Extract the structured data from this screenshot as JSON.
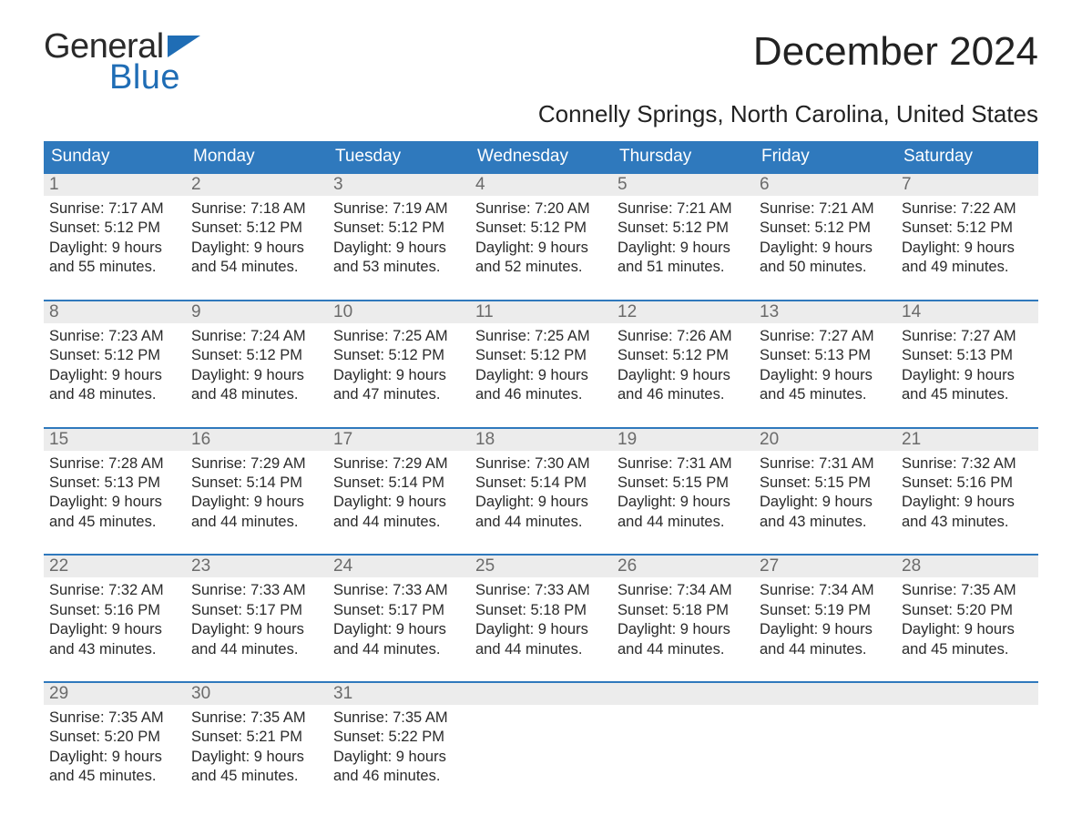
{
  "brand": {
    "word1": "General",
    "word2": "Blue"
  },
  "title": "December 2024",
  "subtitle": "Connelly Springs, North Carolina, United States",
  "colors": {
    "header_bg": "#2f79bd",
    "header_text": "#ffffff",
    "daynum_bg": "#ececec",
    "daynum_text": "#6b6b6b",
    "week_border": "#2f79bd",
    "body_text": "#2a2a2a",
    "logo_blue": "#1f6db5",
    "background": "#ffffff"
  },
  "typography": {
    "title_fontsize": 44,
    "subtitle_fontsize": 26,
    "header_fontsize": 19,
    "daynum_fontsize": 19,
    "body_fontsize": 16.5,
    "logo_fontsize": 38
  },
  "dayNames": [
    "Sunday",
    "Monday",
    "Tuesday",
    "Wednesday",
    "Thursday",
    "Friday",
    "Saturday"
  ],
  "weeks": [
    [
      {
        "n": "1",
        "sunrise": "Sunrise: 7:17 AM",
        "sunset": "Sunset: 5:12 PM",
        "daylight": "Daylight: 9 hours and 55 minutes."
      },
      {
        "n": "2",
        "sunrise": "Sunrise: 7:18 AM",
        "sunset": "Sunset: 5:12 PM",
        "daylight": "Daylight: 9 hours and 54 minutes."
      },
      {
        "n": "3",
        "sunrise": "Sunrise: 7:19 AM",
        "sunset": "Sunset: 5:12 PM",
        "daylight": "Daylight: 9 hours and 53 minutes."
      },
      {
        "n": "4",
        "sunrise": "Sunrise: 7:20 AM",
        "sunset": "Sunset: 5:12 PM",
        "daylight": "Daylight: 9 hours and 52 minutes."
      },
      {
        "n": "5",
        "sunrise": "Sunrise: 7:21 AM",
        "sunset": "Sunset: 5:12 PM",
        "daylight": "Daylight: 9 hours and 51 minutes."
      },
      {
        "n": "6",
        "sunrise": "Sunrise: 7:21 AM",
        "sunset": "Sunset: 5:12 PM",
        "daylight": "Daylight: 9 hours and 50 minutes."
      },
      {
        "n": "7",
        "sunrise": "Sunrise: 7:22 AM",
        "sunset": "Sunset: 5:12 PM",
        "daylight": "Daylight: 9 hours and 49 minutes."
      }
    ],
    [
      {
        "n": "8",
        "sunrise": "Sunrise: 7:23 AM",
        "sunset": "Sunset: 5:12 PM",
        "daylight": "Daylight: 9 hours and 48 minutes."
      },
      {
        "n": "9",
        "sunrise": "Sunrise: 7:24 AM",
        "sunset": "Sunset: 5:12 PM",
        "daylight": "Daylight: 9 hours and 48 minutes."
      },
      {
        "n": "10",
        "sunrise": "Sunrise: 7:25 AM",
        "sunset": "Sunset: 5:12 PM",
        "daylight": "Daylight: 9 hours and 47 minutes."
      },
      {
        "n": "11",
        "sunrise": "Sunrise: 7:25 AM",
        "sunset": "Sunset: 5:12 PM",
        "daylight": "Daylight: 9 hours and 46 minutes."
      },
      {
        "n": "12",
        "sunrise": "Sunrise: 7:26 AM",
        "sunset": "Sunset: 5:12 PM",
        "daylight": "Daylight: 9 hours and 46 minutes."
      },
      {
        "n": "13",
        "sunrise": "Sunrise: 7:27 AM",
        "sunset": "Sunset: 5:13 PM",
        "daylight": "Daylight: 9 hours and 45 minutes."
      },
      {
        "n": "14",
        "sunrise": "Sunrise: 7:27 AM",
        "sunset": "Sunset: 5:13 PM",
        "daylight": "Daylight: 9 hours and 45 minutes."
      }
    ],
    [
      {
        "n": "15",
        "sunrise": "Sunrise: 7:28 AM",
        "sunset": "Sunset: 5:13 PM",
        "daylight": "Daylight: 9 hours and 45 minutes."
      },
      {
        "n": "16",
        "sunrise": "Sunrise: 7:29 AM",
        "sunset": "Sunset: 5:14 PM",
        "daylight": "Daylight: 9 hours and 44 minutes."
      },
      {
        "n": "17",
        "sunrise": "Sunrise: 7:29 AM",
        "sunset": "Sunset: 5:14 PM",
        "daylight": "Daylight: 9 hours and 44 minutes."
      },
      {
        "n": "18",
        "sunrise": "Sunrise: 7:30 AM",
        "sunset": "Sunset: 5:14 PM",
        "daylight": "Daylight: 9 hours and 44 minutes."
      },
      {
        "n": "19",
        "sunrise": "Sunrise: 7:31 AM",
        "sunset": "Sunset: 5:15 PM",
        "daylight": "Daylight: 9 hours and 44 minutes."
      },
      {
        "n": "20",
        "sunrise": "Sunrise: 7:31 AM",
        "sunset": "Sunset: 5:15 PM",
        "daylight": "Daylight: 9 hours and 43 minutes."
      },
      {
        "n": "21",
        "sunrise": "Sunrise: 7:32 AM",
        "sunset": "Sunset: 5:16 PM",
        "daylight": "Daylight: 9 hours and 43 minutes."
      }
    ],
    [
      {
        "n": "22",
        "sunrise": "Sunrise: 7:32 AM",
        "sunset": "Sunset: 5:16 PM",
        "daylight": "Daylight: 9 hours and 43 minutes."
      },
      {
        "n": "23",
        "sunrise": "Sunrise: 7:33 AM",
        "sunset": "Sunset: 5:17 PM",
        "daylight": "Daylight: 9 hours and 44 minutes."
      },
      {
        "n": "24",
        "sunrise": "Sunrise: 7:33 AM",
        "sunset": "Sunset: 5:17 PM",
        "daylight": "Daylight: 9 hours and 44 minutes."
      },
      {
        "n": "25",
        "sunrise": "Sunrise: 7:33 AM",
        "sunset": "Sunset: 5:18 PM",
        "daylight": "Daylight: 9 hours and 44 minutes."
      },
      {
        "n": "26",
        "sunrise": "Sunrise: 7:34 AM",
        "sunset": "Sunset: 5:18 PM",
        "daylight": "Daylight: 9 hours and 44 minutes."
      },
      {
        "n": "27",
        "sunrise": "Sunrise: 7:34 AM",
        "sunset": "Sunset: 5:19 PM",
        "daylight": "Daylight: 9 hours and 44 minutes."
      },
      {
        "n": "28",
        "sunrise": "Sunrise: 7:35 AM",
        "sunset": "Sunset: 5:20 PM",
        "daylight": "Daylight: 9 hours and 45 minutes."
      }
    ],
    [
      {
        "n": "29",
        "sunrise": "Sunrise: 7:35 AM",
        "sunset": "Sunset: 5:20 PM",
        "daylight": "Daylight: 9 hours and 45 minutes."
      },
      {
        "n": "30",
        "sunrise": "Sunrise: 7:35 AM",
        "sunset": "Sunset: 5:21 PM",
        "daylight": "Daylight: 9 hours and 45 minutes."
      },
      {
        "n": "31",
        "sunrise": "Sunrise: 7:35 AM",
        "sunset": "Sunset: 5:22 PM",
        "daylight": "Daylight: 9 hours and 46 minutes."
      },
      null,
      null,
      null,
      null
    ]
  ]
}
